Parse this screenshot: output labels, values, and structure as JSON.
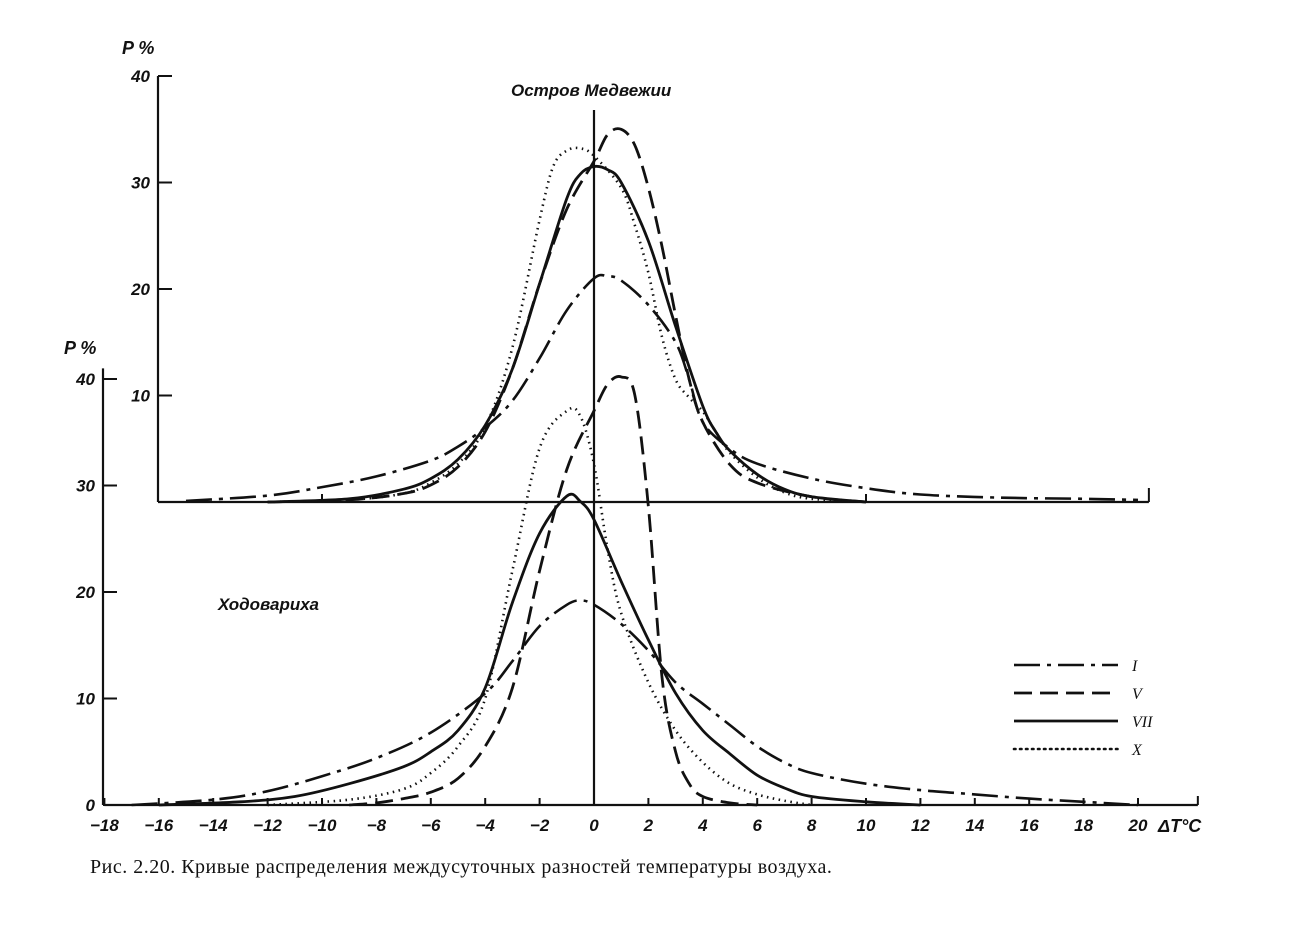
{
  "caption": "Рис. 2.20. Кривые распределения междусуточных разностей температуры воздуха.",
  "chart_data": [
    {
      "type": "line",
      "title": "Остров Медвежии",
      "xlabel": "ΔT°C",
      "ylabel": "P %",
      "xlim": [
        -16,
        20
      ],
      "ylim": [
        0,
        40
      ],
      "yticks": [
        "40",
        "30",
        "20",
        "10"
      ],
      "grid": false,
      "series": [
        {
          "name": "I",
          "style": "dashdot",
          "points": [
            [
              -15,
              0.1
            ],
            [
              -12,
              0.6
            ],
            [
              -10,
              1.4
            ],
            [
              -8,
              2.4
            ],
            [
              -6,
              3.9
            ],
            [
              -5,
              5.2
            ],
            [
              -4,
              7.0
            ],
            [
              -3,
              9.5
            ],
            [
              -2,
              13.5
            ],
            [
              -1,
              18.0
            ],
            [
              0,
              21.0
            ],
            [
              0.5,
              21.2
            ],
            [
              1,
              20.8
            ],
            [
              2,
              18.5
            ],
            [
              3,
              15.0
            ],
            [
              3.5,
              11.5
            ],
            [
              4,
              7.5
            ],
            [
              5,
              5.0
            ],
            [
              6,
              3.6
            ],
            [
              8,
              2.2
            ],
            [
              10,
              1.3
            ],
            [
              12,
              0.7
            ],
            [
              15,
              0.4
            ],
            [
              18,
              0.3
            ],
            [
              20,
              0.2
            ]
          ]
        },
        {
          "name": "V",
          "style": "dashed",
          "points": [
            [
              -12,
              0
            ],
            [
              -9,
              0.2
            ],
            [
              -7,
              0.8
            ],
            [
              -6,
              1.6
            ],
            [
              -5,
              3.3
            ],
            [
              -4,
              6.6
            ],
            [
              -3,
              12.5
            ],
            [
              -2,
              20.5
            ],
            [
              -1,
              27.5
            ],
            [
              0,
              32.0
            ],
            [
              0.5,
              34.5
            ],
            [
              1,
              35.0
            ],
            [
              1.5,
              33.5
            ],
            [
              2,
              29.5
            ],
            [
              2.5,
              24.0
            ],
            [
              3,
              17.5
            ],
            [
              3.5,
              11.5
            ],
            [
              4,
              7.5
            ],
            [
              5,
              3.5
            ],
            [
              6,
              1.8
            ],
            [
              8,
              0.5
            ],
            [
              10,
              0
            ]
          ]
        },
        {
          "name": "VII",
          "style": "solid",
          "points": [
            [
              -12,
              0
            ],
            [
              -9,
              0.3
            ],
            [
              -7,
              1.2
            ],
            [
              -6,
              2.2
            ],
            [
              -5,
              4.0
            ],
            [
              -4,
              7.2
            ],
            [
              -3,
              12.5
            ],
            [
              -2,
              20.5
            ],
            [
              -1,
              28.5
            ],
            [
              -0.5,
              30.8
            ],
            [
              0,
              31.5
            ],
            [
              0.5,
              31.2
            ],
            [
              1,
              30.0
            ],
            [
              2,
              24.5
            ],
            [
              3,
              16.5
            ],
            [
              4,
              9.0
            ],
            [
              4.5,
              6.5
            ],
            [
              5,
              4.8
            ],
            [
              6,
              2.6
            ],
            [
              7,
              1.2
            ],
            [
              8,
              0.5
            ],
            [
              10,
              0
            ]
          ]
        },
        {
          "name": "X",
          "style": "dotted",
          "points": [
            [
              -12,
              0
            ],
            [
              -9,
              0.2
            ],
            [
              -7,
              0.8
            ],
            [
              -6,
              1.8
            ],
            [
              -5,
              3.6
            ],
            [
              -4,
              7.0
            ],
            [
              -3,
              14.5
            ],
            [
              -2,
              26.5
            ],
            [
              -1.5,
              31.5
            ],
            [
              -1,
              33.0
            ],
            [
              -0.5,
              33.2
            ],
            [
              0,
              32.5
            ],
            [
              1,
              29.5
            ],
            [
              1.5,
              26.0
            ],
            [
              2,
              21.5
            ],
            [
              2.5,
              15.5
            ],
            [
              3,
              11.5
            ],
            [
              3.5,
              9.8
            ],
            [
              4,
              8.5
            ],
            [
              4.5,
              6.5
            ],
            [
              5,
              4.6
            ],
            [
              6,
              2.3
            ],
            [
              7,
              0.9
            ],
            [
              8,
              0.3
            ],
            [
              10,
              0
            ]
          ]
        }
      ]
    },
    {
      "type": "line",
      "title": "Ходовариха",
      "xlabel": "ΔT°C",
      "ylabel": "P %",
      "xlim": [
        -18,
        20
      ],
      "ylim": [
        0,
        40
      ],
      "yticks": [
        "40",
        "30",
        "20",
        "10",
        "0"
      ],
      "xticks": [
        "-18",
        "-16",
        "-14",
        "-12",
        "-10",
        "-8",
        "-6",
        "-4",
        "-2",
        "0",
        "2",
        "4",
        "6",
        "8",
        "10",
        "12",
        "14",
        "16",
        "18",
        "20"
      ],
      "grid": false,
      "series": [
        {
          "name": "I",
          "style": "dashdot",
          "points": [
            [
              -17,
              0
            ],
            [
              -14,
              0.5
            ],
            [
              -12,
              1.3
            ],
            [
              -10,
              2.7
            ],
            [
              -8,
              4.4
            ],
            [
              -6,
              6.8
            ],
            [
              -4,
              10.5
            ],
            [
              -3,
              13.5
            ],
            [
              -2,
              16.8
            ],
            [
              -1,
              18.8
            ],
            [
              -0.5,
              19.2
            ],
            [
              0,
              18.8
            ],
            [
              1,
              17.0
            ],
            [
              2,
              14.5
            ],
            [
              3,
              11.5
            ],
            [
              4,
              9.5
            ],
            [
              5,
              7.5
            ],
            [
              6,
              5.5
            ],
            [
              7,
              4.0
            ],
            [
              8,
              3.0
            ],
            [
              10,
              2.0
            ],
            [
              12,
              1.4
            ],
            [
              14,
              1.0
            ],
            [
              16,
              0.6
            ],
            [
              18,
              0.3
            ],
            [
              20,
              0
            ]
          ]
        },
        {
          "name": "V",
          "style": "dashed",
          "points": [
            [
              -9,
              0
            ],
            [
              -8,
              0.2
            ],
            [
              -7,
              0.6
            ],
            [
              -6,
              1.2
            ],
            [
              -5,
              2.5
            ],
            [
              -4,
              5.5
            ],
            [
              -3,
              11.0
            ],
            [
              -2,
              22.0
            ],
            [
              -1,
              31.5
            ],
            [
              0,
              37.0
            ],
            [
              0.5,
              39.5
            ],
            [
              1,
              40.2
            ],
            [
              1.5,
              38.5
            ],
            [
              2,
              28.0
            ],
            [
              2.5,
              12.0
            ],
            [
              3,
              5.0
            ],
            [
              3.5,
              2.0
            ],
            [
              4,
              0.8
            ],
            [
              5,
              0.2
            ],
            [
              6,
              0
            ]
          ]
        },
        {
          "name": "VII",
          "style": "solid",
          "points": [
            [
              -16,
              0
            ],
            [
              -13,
              0.3
            ],
            [
              -11,
              0.8
            ],
            [
              -9,
              2.0
            ],
            [
              -7,
              3.6
            ],
            [
              -6,
              5.0
            ],
            [
              -5,
              7.0
            ],
            [
              -4,
              11.0
            ],
            [
              -3,
              19.0
            ],
            [
              -2,
              25.5
            ],
            [
              -1,
              29.0
            ],
            [
              -0.5,
              28.5
            ],
            [
              0,
              26.8
            ],
            [
              1,
              21.0
            ],
            [
              2,
              15.5
            ],
            [
              3,
              10.5
            ],
            [
              4,
              7.0
            ],
            [
              5,
              4.8
            ],
            [
              6,
              2.8
            ],
            [
              7,
              1.6
            ],
            [
              8,
              0.8
            ],
            [
              10,
              0.3
            ],
            [
              12,
              0
            ]
          ]
        },
        {
          "name": "X",
          "style": "dotted",
          "points": [
            [
              -12,
              0
            ],
            [
              -9,
              0.5
            ],
            [
              -7,
              1.5
            ],
            [
              -6,
              3.0
            ],
            [
              -5,
              5.5
            ],
            [
              -4,
              10.0
            ],
            [
              -3,
              22.0
            ],
            [
              -2,
              33.5
            ],
            [
              -1,
              37.0
            ],
            [
              -0.5,
              36.5
            ],
            [
              0,
              32.0
            ],
            [
              0.5,
              24.0
            ],
            [
              1,
              18.0
            ],
            [
              2,
              11.5
            ],
            [
              3,
              7.0
            ],
            [
              4,
              4.0
            ],
            [
              5,
              2.0
            ],
            [
              6,
              1.0
            ],
            [
              7,
              0.4
            ],
            [
              8,
              0
            ]
          ]
        }
      ]
    }
  ],
  "legend": {
    "position": "right",
    "entries": [
      {
        "label": "I",
        "style": "dashdot"
      },
      {
        "label": "V",
        "style": "dashed"
      },
      {
        "label": "VII",
        "style": "solid"
      },
      {
        "label": "X",
        "style": "dotted"
      }
    ]
  },
  "colors": {
    "ink": "#111111",
    "paper": "#ffffff"
  }
}
